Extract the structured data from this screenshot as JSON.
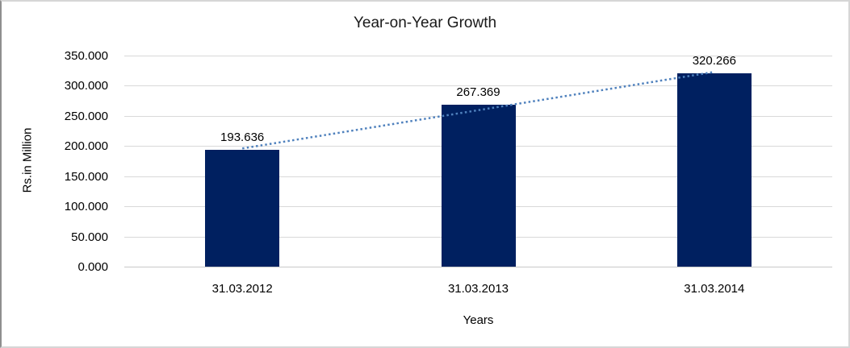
{
  "chart_data": {
    "type": "bar",
    "title": "Year-on-Year Growth",
    "xlabel": "Years",
    "ylabel": "Rs.in Million",
    "categories": [
      "31.03.2012",
      "31.03.2013",
      "31.03.2014"
    ],
    "values": [
      193.636,
      267.369,
      320.266
    ],
    "data_labels": [
      "193.636",
      "267.369",
      "320.266"
    ],
    "ylim": [
      0,
      350
    ],
    "ytick_values": [
      0,
      50,
      100,
      150,
      200,
      250,
      300,
      350
    ],
    "ytick_labels": [
      "0.000",
      "50.000",
      "100.000",
      "150.000",
      "200.000",
      "250.000",
      "300.000",
      "350.000"
    ],
    "grid": true,
    "legend": "none",
    "trendline": {
      "type": "linear",
      "style": "dotted",
      "color": "#4F81BD"
    },
    "colors": {
      "bar": "#002060",
      "gridline": "#D9D9D9",
      "axis_line": "#C9C9C9",
      "trendline": "#4F81BD",
      "text": "#000000",
      "border": "#D6D6D6"
    }
  }
}
